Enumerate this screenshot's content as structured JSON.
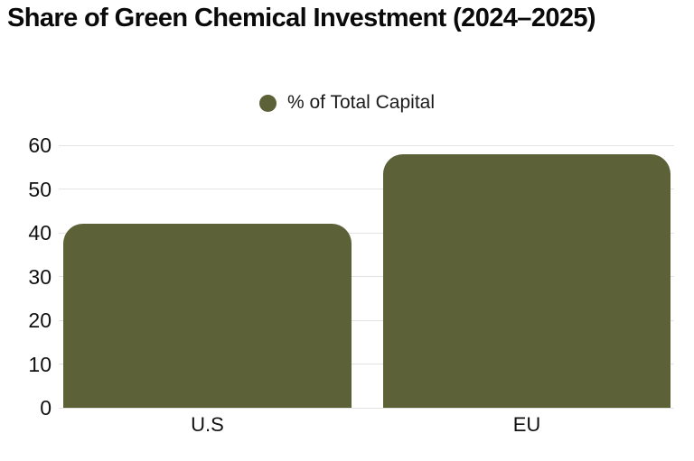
{
  "title": "Share of Green Chemical Investment (2024–2025)",
  "legend": {
    "label": "% of Total Capital"
  },
  "colors": {
    "bar": "#5C6137",
    "gridline": "#E3E3E3",
    "text": "#111111",
    "background": "#FFFFFF"
  },
  "chart_data": {
    "type": "bar",
    "categories": [
      "U.S",
      "EU"
    ],
    "values": [
      42,
      58
    ],
    "series": [
      {
        "name": "% of Total Capital",
        "values": [
          42,
          58
        ]
      }
    ],
    "title": "Share of Green Chemical Investment (2024–2025)",
    "xlabel": "",
    "ylabel": "",
    "ylim": [
      0,
      60
    ],
    "yticks": [
      0,
      10,
      20,
      30,
      40,
      50,
      60
    ],
    "grid": true,
    "legend_position": "top-center",
    "bar_color": "#5C6137",
    "bar_corner_radius": 22
  }
}
